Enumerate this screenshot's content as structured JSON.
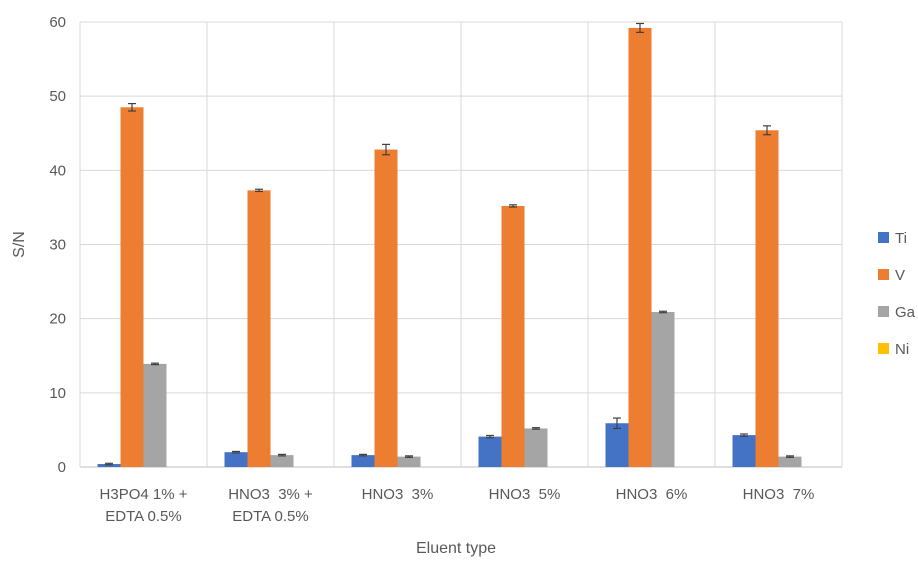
{
  "chart_data": {
    "type": "bar",
    "title": "",
    "xlabel": "Eluent type",
    "ylabel": "S/N",
    "ylim": [
      0,
      60
    ],
    "yticks": [
      0,
      10,
      20,
      30,
      40,
      50,
      60
    ],
    "grid": true,
    "legend_position": "right",
    "categories": [
      [
        "H3PO4 1% +",
        "EDTA 0.5%"
      ],
      [
        "HNO3  3% +",
        "EDTA 0.5%"
      ],
      [
        "HNO3  3%"
      ],
      [
        "HNO3  5%"
      ],
      [
        "HNO3  6%"
      ],
      [
        "HNO3  7%"
      ]
    ],
    "series": [
      {
        "name": "Ti",
        "color": "#4472C4",
        "values": [
          0.4,
          2.0,
          1.6,
          4.1,
          5.9,
          4.3
        ],
        "errors": [
          0.1,
          0.1,
          0.1,
          0.15,
          0.7,
          0.15
        ]
      },
      {
        "name": "V",
        "color": "#ED7D31",
        "values": [
          48.5,
          37.3,
          42.8,
          35.2,
          59.2,
          45.4
        ],
        "errors": [
          0.5,
          0.15,
          0.7,
          0.15,
          0.6,
          0.6
        ]
      },
      {
        "name": "Ga",
        "color": "#A5A5A5",
        "values": [
          13.9,
          1.6,
          1.4,
          5.2,
          20.9,
          1.4
        ],
        "errors": [
          0.1,
          0.1,
          0.1,
          0.1,
          0.1,
          0.1
        ]
      },
      {
        "name": "Ni",
        "color": "#FFC000",
        "values": [
          0,
          0,
          0,
          0,
          0,
          0
        ],
        "errors": [
          0,
          0,
          0,
          0,
          0,
          0
        ]
      }
    ]
  }
}
